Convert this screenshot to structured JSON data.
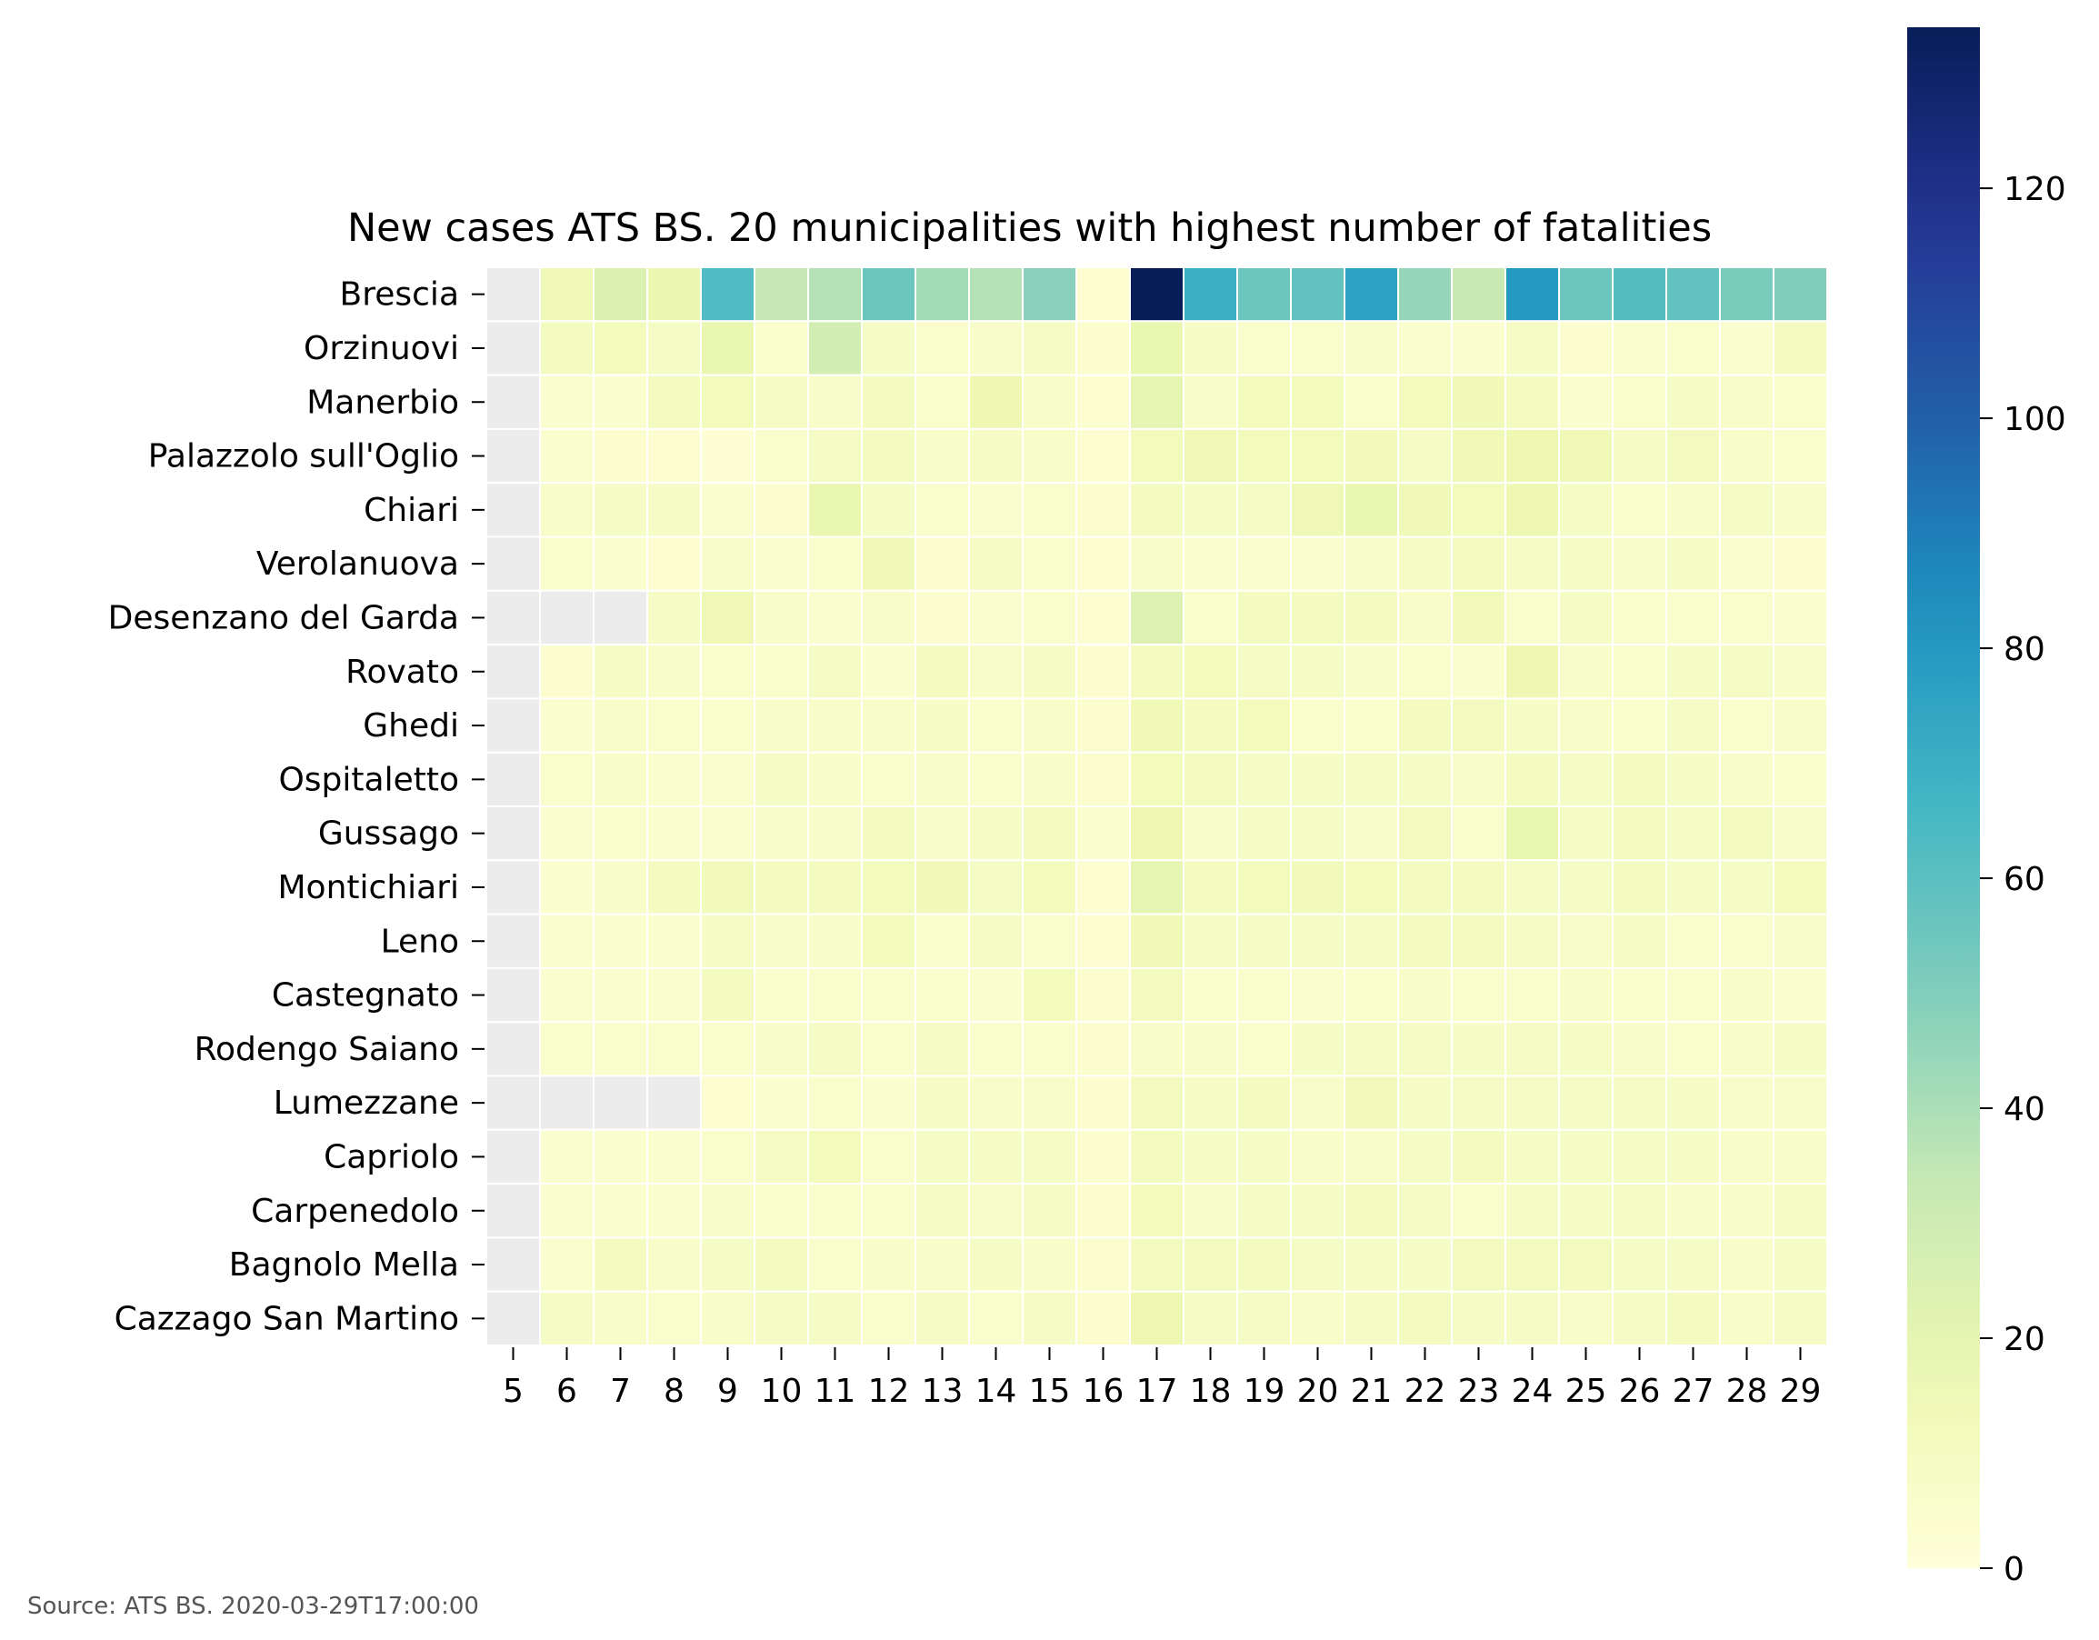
{
  "chart_data": {
    "type": "heatmap",
    "title": "New cases ATS BS. 20 municipalities with highest number of fatalities",
    "x": [
      5,
      6,
      7,
      8,
      9,
      10,
      11,
      12,
      13,
      14,
      15,
      16,
      17,
      18,
      19,
      20,
      21,
      22,
      23,
      24,
      25,
      26,
      27,
      28,
      29
    ],
    "y": [
      "Brescia",
      "Orzinuovi",
      "Manerbio",
      "Palazzolo sull'Oglio",
      "Chiari",
      "Verolanuova",
      "Desenzano del Garda",
      "Rovato",
      "Ghedi",
      "Ospitaletto",
      "Gussago",
      "Montichiari",
      "Leno",
      "Castegnato",
      "Rodengo Saiano",
      "Lumezzane",
      "Capriolo",
      "Carpenedolo",
      "Bagnolo Mella",
      "Cazzago San Martino"
    ],
    "values": [
      [
        null,
        15,
        25,
        17,
        63,
        34,
        38,
        55,
        42,
        38,
        48,
        3,
        134,
        70,
        55,
        58,
        76,
        45,
        33,
        80,
        55,
        62,
        58,
        52,
        50
      ],
      [
        null,
        10,
        12,
        9,
        18,
        6,
        28,
        8,
        6,
        7,
        9,
        4,
        18,
        8,
        6,
        6,
        7,
        5,
        5,
        8,
        4,
        5,
        6,
        5,
        11
      ],
      [
        null,
        5,
        5,
        10,
        12,
        8,
        7,
        10,
        6,
        16,
        7,
        3,
        20,
        7,
        12,
        12,
        6,
        12,
        14,
        10,
        5,
        6,
        8,
        7,
        6
      ],
      [
        null,
        5,
        4,
        3,
        2,
        6,
        9,
        10,
        7,
        8,
        7,
        3,
        12,
        15,
        12,
        12,
        13,
        9,
        14,
        16,
        14,
        8,
        11,
        7,
        6
      ],
      [
        null,
        7,
        8,
        8,
        5,
        4,
        18,
        8,
        6,
        5,
        6,
        4,
        10,
        8,
        9,
        15,
        18,
        14,
        12,
        16,
        8,
        6,
        7,
        9,
        7
      ],
      [
        null,
        6,
        5,
        3,
        7,
        5,
        6,
        14,
        4,
        9,
        6,
        3,
        7,
        5,
        5,
        5,
        7,
        8,
        11,
        8,
        8,
        7,
        8,
        5,
        4
      ],
      [
        null,
        null,
        null,
        8,
        15,
        7,
        5,
        7,
        4,
        5,
        6,
        3,
        24,
        6,
        10,
        10,
        10,
        7,
        13,
        6,
        8,
        6,
        6,
        6,
        5
      ],
      [
        null,
        4,
        8,
        7,
        6,
        6,
        9,
        5,
        10,
        7,
        8,
        4,
        10,
        12,
        9,
        8,
        7,
        6,
        5,
        16,
        7,
        6,
        8,
        9,
        7
      ],
      [
        null,
        5,
        7,
        6,
        6,
        7,
        7,
        7,
        8,
        6,
        7,
        4,
        14,
        10,
        12,
        6,
        6,
        10,
        11,
        8,
        7,
        6,
        9,
        6,
        7
      ],
      [
        null,
        6,
        7,
        5,
        5,
        8,
        7,
        6,
        7,
        6,
        7,
        4,
        12,
        11,
        8,
        8,
        9,
        8,
        7,
        10,
        8,
        10,
        8,
        7,
        6
      ],
      [
        null,
        5,
        6,
        5,
        5,
        7,
        7,
        10,
        7,
        8,
        11,
        5,
        16,
        7,
        8,
        9,
        7,
        11,
        6,
        18,
        9,
        10,
        9,
        11,
        7
      ],
      [
        null,
        5,
        7,
        10,
        13,
        10,
        10,
        12,
        14,
        9,
        12,
        3,
        20,
        10,
        12,
        13,
        12,
        10,
        10,
        9,
        9,
        10,
        8,
        9,
        12
      ],
      [
        null,
        5,
        5,
        5,
        8,
        7,
        7,
        12,
        6,
        8,
        6,
        3,
        14,
        8,
        8,
        8,
        8,
        10,
        11,
        8,
        7,
        8,
        6,
        6,
        7
      ],
      [
        null,
        5,
        5,
        5,
        10,
        6,
        6,
        6,
        6,
        5,
        12,
        4,
        11,
        6,
        6,
        5,
        6,
        7,
        6,
        6,
        7,
        6,
        6,
        7,
        5
      ],
      [
        null,
        6,
        6,
        6,
        6,
        7,
        9,
        6,
        9,
        6,
        6,
        4,
        7,
        7,
        6,
        8,
        9,
        9,
        8,
        9,
        8,
        7,
        6,
        7,
        8
      ],
      [
        null,
        null,
        null,
        null,
        3,
        5,
        6,
        5,
        8,
        7,
        7,
        4,
        11,
        8,
        10,
        7,
        13,
        8,
        9,
        9,
        9,
        9,
        8,
        7,
        7
      ],
      [
        null,
        5,
        5,
        5,
        6,
        9,
        12,
        6,
        9,
        8,
        8,
        4,
        10,
        8,
        8,
        7,
        7,
        8,
        10,
        8,
        8,
        9,
        8,
        7,
        7
      ],
      [
        null,
        5,
        5,
        5,
        7,
        6,
        6,
        6,
        9,
        7,
        8,
        4,
        12,
        7,
        9,
        8,
        11,
        9,
        6,
        8,
        8,
        9,
        7,
        7,
        8
      ],
      [
        null,
        5,
        10,
        7,
        8,
        10,
        6,
        7,
        7,
        8,
        7,
        4,
        11,
        11,
        10,
        9,
        9,
        8,
        11,
        11,
        11,
        8,
        9,
        7,
        8
      ],
      [
        null,
        8,
        7,
        6,
        7,
        9,
        9,
        6,
        9,
        6,
        8,
        4,
        16,
        9,
        9,
        7,
        8,
        10,
        8,
        8,
        7,
        8,
        10,
        7,
        9
      ]
    ],
    "missing_color": "#ececec",
    "colormap": "YlGnBu",
    "colorbar": {
      "min": 0,
      "max": 134,
      "ticks": [
        0,
        20,
        40,
        60,
        80,
        100,
        120
      ]
    },
    "source": "Source: ATS BS. 2020-03-29T17:00:00"
  }
}
